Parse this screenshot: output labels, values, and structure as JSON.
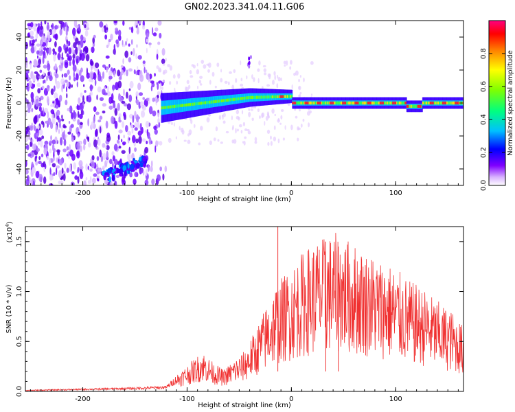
{
  "title": "GN02.2023.341.04.11.G06",
  "colors": {
    "snr_line": "#f03030",
    "spectrogram_purple": "#6a00ff",
    "frame": "#000000"
  },
  "chart_data": [
    {
      "type": "heatmap",
      "name": "spectrogram",
      "xlabel": "Height of straight line (km)",
      "ylabel": "Frequency (Hz)",
      "xlim": [
        -255,
        165
      ],
      "ylim": [
        -50,
        50
      ],
      "x_ticks": [
        -200,
        -100,
        0,
        100
      ],
      "x_tick_labels": [
        "-200",
        "-100",
        "0",
        "100"
      ],
      "y_ticks": [
        -40,
        -20,
        0,
        20,
        40
      ],
      "y_tick_labels": [
        "-40",
        "-20",
        "0",
        "20",
        "40"
      ],
      "colorbar": {
        "label": "Normalized spectral amplitude",
        "range": [
          0.0,
          1.0
        ],
        "ticks": [
          0.0,
          0.2,
          0.4,
          0.6,
          0.8
        ],
        "tick_labels": [
          "0.0",
          "0.2",
          "0.4",
          "0.6",
          "0.8"
        ],
        "colormap": [
          "#ffffff",
          "#d9b3ff",
          "#8000ff",
          "#0000ff",
          "#00c0ff",
          "#00ff80",
          "#80ff00",
          "#ffff00",
          "#ff8000",
          "#ff0000",
          "#ff0080"
        ]
      },
      "features": {
        "noise_region_x": [
          -255,
          -120
        ],
        "signal_track_freq_hz": 0,
        "signal_track_x": [
          -120,
          165
        ],
        "blob_near": {
          "x": -40,
          "freq_hz": 25
        },
        "low_branch": {
          "x": [
            -180,
            -140
          ],
          "freq_hz": [
            -45,
            -35
          ]
        }
      }
    },
    {
      "type": "line",
      "name": "snr",
      "xlabel": "Height of straight line (km)",
      "ylabel": "SNR (10 * v/v)",
      "y_scale_label": "(x10^4)",
      "y_scale_base": "(x10",
      "y_scale_exp": "4",
      "y_scale_close": ")",
      "xlim": [
        -255,
        165
      ],
      "ylim": [
        0.0,
        1.65
      ],
      "x_ticks": [
        -200,
        -100,
        0,
        100
      ],
      "x_tick_labels": [
        "-200",
        "-100",
        "0",
        "100"
      ],
      "y_ticks": [
        0.0,
        0.5,
        1.0,
        1.5
      ],
      "y_tick_labels": [
        "0.0",
        "0.5",
        "1.0",
        "1.5"
      ],
      "series": [
        {
          "name": "SNR",
          "x": [
            -255,
            -200,
            -150,
            -120,
            -110,
            -100,
            -85,
            -75,
            -65,
            -55,
            -45,
            -35,
            -25,
            -15,
            -5,
            5,
            15,
            25,
            35,
            45,
            55,
            65,
            75,
            85,
            95,
            105,
            115,
            125,
            135,
            145,
            155,
            165
          ],
          "y": [
            0.01,
            0.02,
            0.03,
            0.04,
            0.12,
            0.18,
            0.28,
            0.2,
            0.15,
            0.22,
            0.28,
            0.42,
            0.58,
            0.75,
            0.82,
            0.92,
            1.0,
            1.05,
            1.08,
            1.1,
            1.05,
            1.0,
            0.96,
            0.92,
            0.88,
            0.82,
            0.76,
            0.72,
            0.66,
            0.6,
            0.55,
            0.45
          ],
          "spikes": [
            {
              "x": -13,
              "y": 1.65
            },
            {
              "x": 33,
              "y": 1.5
            },
            {
              "x": 45,
              "y": 1.45
            }
          ]
        }
      ]
    }
  ]
}
